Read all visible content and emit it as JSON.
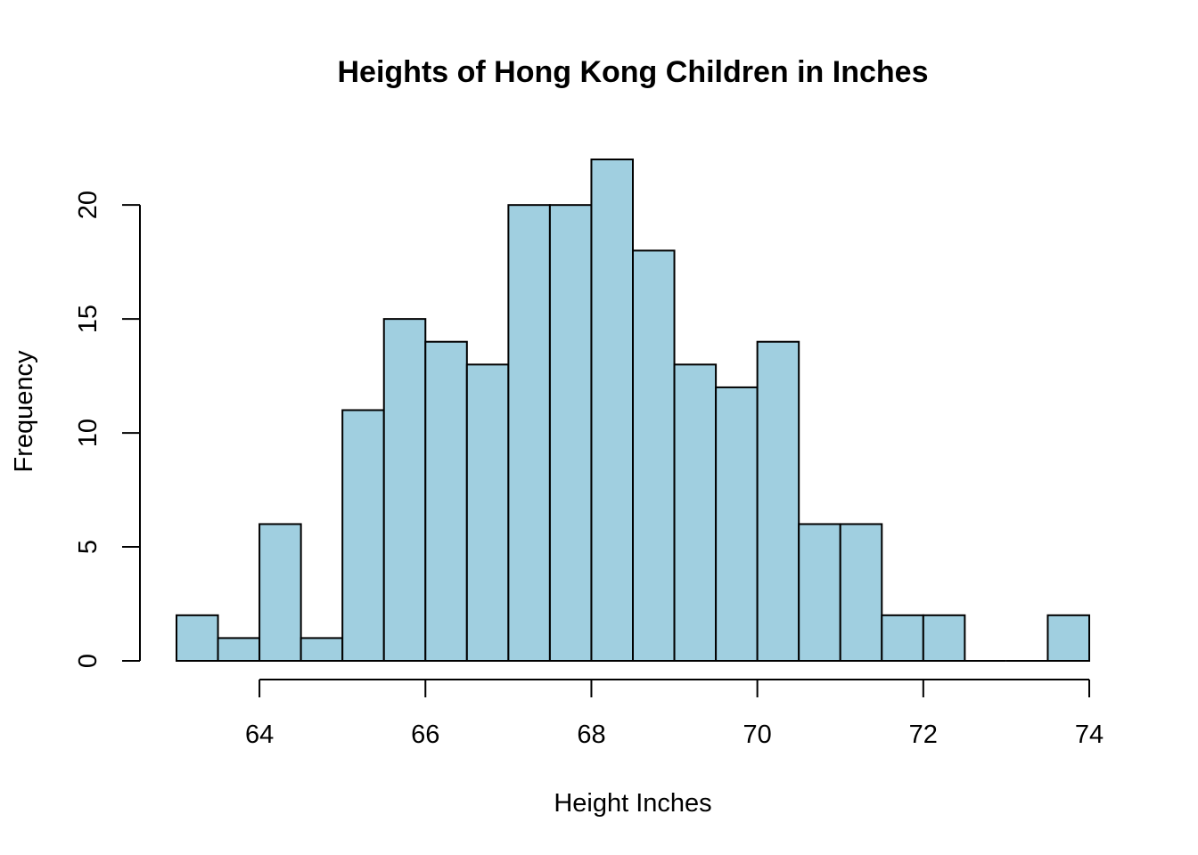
{
  "chart_data": {
    "type": "bar",
    "title": "Heights of Hong Kong Children in Inches",
    "xlabel": "Height Inches",
    "ylabel": "Frequency",
    "bar_color": "#a0cfe0",
    "bin_width": 0.5,
    "bins": [
      {
        "x0": 63.0,
        "x1": 63.5,
        "count": 2
      },
      {
        "x0": 63.5,
        "x1": 64.0,
        "count": 1
      },
      {
        "x0": 64.0,
        "x1": 64.5,
        "count": 6
      },
      {
        "x0": 64.5,
        "x1": 65.0,
        "count": 1
      },
      {
        "x0": 65.0,
        "x1": 65.5,
        "count": 11
      },
      {
        "x0": 65.5,
        "x1": 66.0,
        "count": 15
      },
      {
        "x0": 66.0,
        "x1": 66.5,
        "count": 14
      },
      {
        "x0": 66.5,
        "x1": 67.0,
        "count": 13
      },
      {
        "x0": 67.0,
        "x1": 67.5,
        "count": 20
      },
      {
        "x0": 67.5,
        "x1": 68.0,
        "count": 20
      },
      {
        "x0": 68.0,
        "x1": 68.5,
        "count": 22
      },
      {
        "x0": 68.5,
        "x1": 69.0,
        "count": 18
      },
      {
        "x0": 69.0,
        "x1": 69.5,
        "count": 13
      },
      {
        "x0": 69.5,
        "x1": 70.0,
        "count": 12
      },
      {
        "x0": 70.0,
        "x1": 70.5,
        "count": 14
      },
      {
        "x0": 70.5,
        "x1": 71.0,
        "count": 6
      },
      {
        "x0": 71.0,
        "x1": 71.5,
        "count": 6
      },
      {
        "x0": 71.5,
        "x1": 72.0,
        "count": 2
      },
      {
        "x0": 72.0,
        "x1": 72.5,
        "count": 2
      },
      {
        "x0": 72.5,
        "x1": 73.0,
        "count": 0
      },
      {
        "x0": 73.0,
        "x1": 73.5,
        "count": 0
      },
      {
        "x0": 73.5,
        "x1": 74.0,
        "count": 2
      }
    ],
    "xticks": [
      64,
      66,
      68,
      70,
      72,
      74
    ],
    "yticks": [
      0,
      5,
      10,
      15,
      20
    ],
    "xlim": [
      63,
      74
    ],
    "ylim": [
      0,
      22
    ],
    "grid": false
  }
}
